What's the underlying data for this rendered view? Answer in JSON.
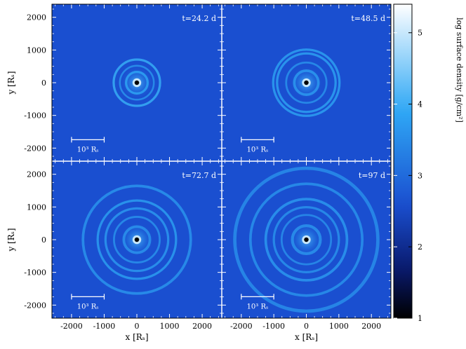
{
  "chart_data": {
    "type": "heatmap",
    "panels": [
      {
        "time_label": "t=24.2 d",
        "scale_bar_label": "10³ Rₛ",
        "rings": [
          {
            "r": 330,
            "w": 70,
            "i": 0.8
          },
          {
            "r": 520,
            "w": 55,
            "i": 0.55
          },
          {
            "r": 710,
            "w": 70,
            "i": 0.95
          }
        ]
      },
      {
        "time_label": "t=48.5 d",
        "scale_bar_label": "10³ Rₛ",
        "rings": [
          {
            "r": 370,
            "w": 80,
            "i": 0.65
          },
          {
            "r": 620,
            "w": 60,
            "i": 0.5
          },
          {
            "r": 900,
            "w": 70,
            "i": 0.75
          },
          {
            "r": 1020,
            "w": 70,
            "i": 0.75
          }
        ]
      },
      {
        "time_label": "t=72.7 d",
        "scale_bar_label": "10³ Rₛ",
        "rings": [
          {
            "r": 400,
            "w": 80,
            "i": 0.55
          },
          {
            "r": 700,
            "w": 60,
            "i": 0.5
          },
          {
            "r": 960,
            "w": 70,
            "i": 0.6
          },
          {
            "r": 1200,
            "w": 70,
            "i": 0.7
          },
          {
            "r": 1650,
            "w": 80,
            "i": 0.55
          }
        ]
      },
      {
        "time_label": "t=97 d",
        "scale_bar_label": "10³ Rₛ",
        "rings": [
          {
            "r": 430,
            "w": 90,
            "i": 0.55
          },
          {
            "r": 760,
            "w": 60,
            "i": 0.45
          },
          {
            "r": 1000,
            "w": 70,
            "i": 0.5
          },
          {
            "r": 1250,
            "w": 80,
            "i": 0.6
          },
          {
            "r": 1720,
            "w": 80,
            "i": 0.5
          },
          {
            "r": 2200,
            "w": 100,
            "i": 0.45
          }
        ]
      }
    ],
    "x_axis_label": "x [Rₛ]",
    "y_axis_label": "y [Rₛ]",
    "xlim": [
      -2600,
      2600
    ],
    "ylim": [
      -2400,
      2400
    ],
    "x_ticks": [
      -2000,
      -1000,
      0,
      1000,
      2000
    ],
    "y_ticks": [
      -2000,
      -1000,
      0,
      1000,
      2000
    ],
    "scale_bar_length": 1000,
    "colorbar": {
      "label": "log surface density [g/cm²]",
      "range": [
        1,
        5.4
      ],
      "ticks": [
        1,
        2,
        3,
        4,
        5
      ]
    },
    "background_level": 2.6,
    "central_hole_radius": 70,
    "colors": {
      "low": "#000000",
      "mid_dark": "#0a1a6e",
      "mid": "#1a4fd0",
      "high": "#2fa8f5",
      "top": "#ffffff"
    }
  }
}
